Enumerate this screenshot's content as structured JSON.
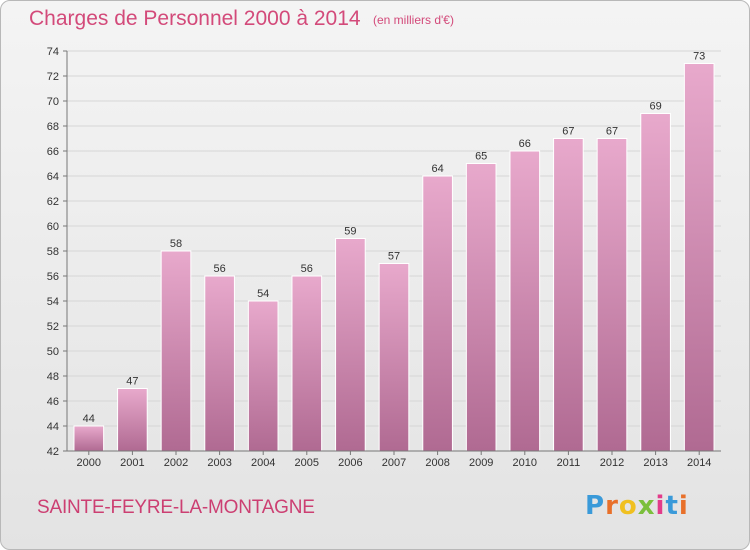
{
  "title": "Charges de Personnel 2000 à 2014",
  "subtitle": "(en milliers d'€)",
  "commune": "SAINTE-FEYRE-LA-MONTAGNE",
  "logo": {
    "letters": [
      "P",
      "r",
      "o",
      "x",
      "i",
      "t",
      "i"
    ],
    "colors": [
      "#3a9ad9",
      "#e8702a",
      "#f0c020",
      "#7bbf3c",
      "#e23b8a",
      "#3a9ad9",
      "#e8702a"
    ]
  },
  "colors": {
    "bar_top": "#e8a9cc",
    "bar_bottom": "#b06a92",
    "title": "#d34a7a"
  },
  "chart_data": {
    "type": "bar",
    "title": "Charges de Personnel 2000 à 2014",
    "subtitle": "(en milliers d'€)",
    "xlabel": "",
    "ylabel": "",
    "categories": [
      "2000",
      "2001",
      "2002",
      "2003",
      "2004",
      "2005",
      "2006",
      "2007",
      "2008",
      "2009",
      "2010",
      "2011",
      "2012",
      "2013",
      "2014"
    ],
    "values": [
      44,
      47,
      58,
      56,
      54,
      56,
      59,
      57,
      64,
      65,
      66,
      67,
      67,
      69,
      73
    ],
    "ylim": [
      42,
      74
    ],
    "yticks": [
      42,
      44,
      46,
      48,
      50,
      52,
      54,
      56,
      58,
      60,
      62,
      64,
      66,
      68,
      70,
      72,
      74
    ],
    "grid": true
  }
}
